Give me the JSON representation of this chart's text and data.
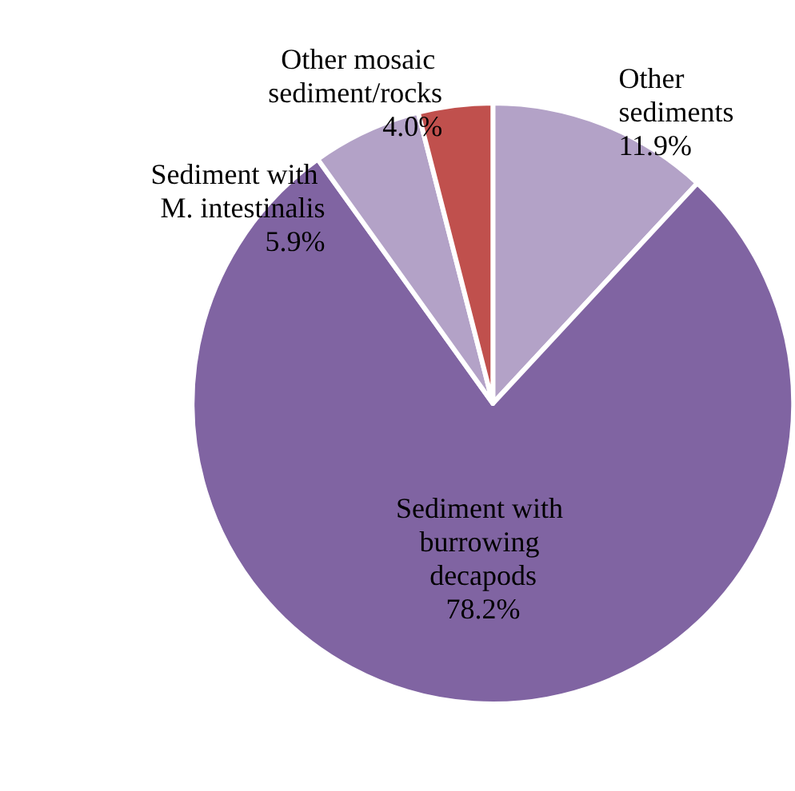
{
  "chart_data": {
    "type": "pie",
    "categories": [
      "Other sediments",
      "Sediment with burrowing decapods",
      "Sediment with M. intestinalis",
      "Other mosaic sediment/rocks"
    ],
    "values": [
      11.9,
      78.2,
      5.9,
      4.0
    ],
    "colors": [
      "#b3a2c7",
      "#8064a2",
      "#b3a2c7",
      "#c0504d"
    ],
    "value_labels": [
      "11.9%",
      "78.2%",
      "5.9%",
      "4.0%"
    ]
  }
}
